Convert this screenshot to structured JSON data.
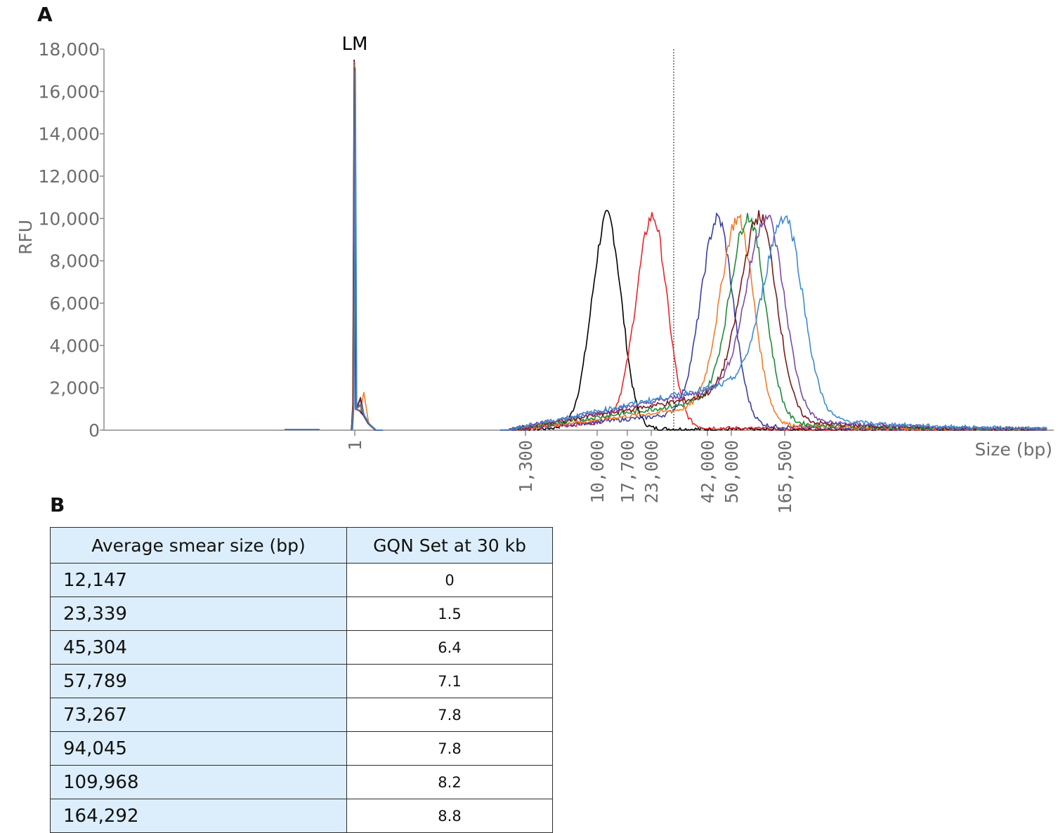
{
  "panels": {
    "a_label": "A",
    "b_label": "B"
  },
  "chart_data": {
    "type": "line",
    "ylabel": "RFU",
    "xlabel": "Size (bp)",
    "ylim": [
      0,
      18000
    ],
    "yticks": [
      0,
      2000,
      4000,
      6000,
      8000,
      10000,
      12000,
      14000,
      16000,
      18000
    ],
    "ytick_labels": [
      "0",
      "2,000",
      "4,000",
      "6,000",
      "8,000",
      "10,000",
      "12,000",
      "14,000",
      "16,000",
      "18,000"
    ],
    "xtick_labels": [
      "1",
      "1,300",
      "10,000",
      "17,700",
      "23,000",
      "42,000",
      "50,000",
      "165,500"
    ],
    "xscale": "nonlinear (ladder-calibrated)",
    "annotations": [
      {
        "text": "LM",
        "x": "1"
      }
    ],
    "reference_line": {
      "x_bp": 30000,
      "style": "dotted"
    },
    "grid": false,
    "legend": "none",
    "series": [
      {
        "color": "#000000",
        "peak_bp": 12147,
        "peak_rfu": 10100
      },
      {
        "color": "#e8262b",
        "peak_bp": 23339,
        "peak_rfu": 10100
      },
      {
        "color": "#3b3fa0",
        "peak_bp": 45304,
        "peak_rfu": 10000
      },
      {
        "color": "#f07d2c",
        "peak_bp": 57789,
        "peak_rfu": 10000
      },
      {
        "color": "#1f8a3a",
        "peak_bp": 73267,
        "peak_rfu": 10100
      },
      {
        "color": "#7a1a1a",
        "peak_bp": 94045,
        "peak_rfu": 10100
      },
      {
        "color": "#7b4aaa",
        "peak_bp": 109968,
        "peak_rfu": 10100
      },
      {
        "color": "#3d8bd0",
        "peak_bp": 164292,
        "peak_rfu": 10100
      }
    ],
    "lower_marker": {
      "x_bp": 1,
      "peak_rfu": 17500,
      "shoulder_rfu": 1800
    }
  },
  "table": {
    "headers": [
      "Average smear size (bp)",
      "GQN Set at 30 kb"
    ],
    "rows": [
      [
        "12,147",
        "0"
      ],
      [
        "23,339",
        "1.5"
      ],
      [
        "45,304",
        "6.4"
      ],
      [
        "57,789",
        "7.1"
      ],
      [
        "73,267",
        "7.8"
      ],
      [
        "94,045",
        "7.8"
      ],
      [
        "109,968",
        "8.2"
      ],
      [
        "164,292",
        "8.8"
      ]
    ]
  }
}
